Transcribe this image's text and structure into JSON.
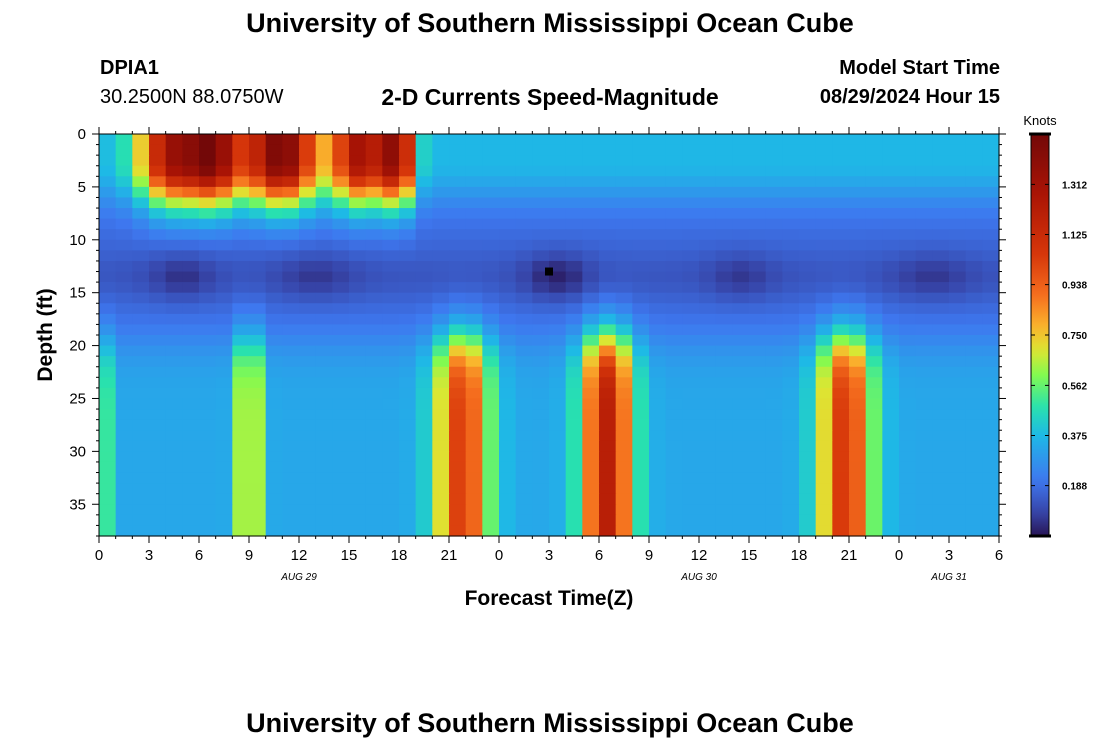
{
  "header": {
    "title": "University of Southern Mississippi Ocean Cube",
    "station": "DPIA1",
    "coordinates": "30.2500N  88.0750W",
    "subtitle": "2-D Currents Speed-Magnitude",
    "model_start_label": "Model Start Time",
    "model_start_value": "08/29/2024 Hour 15"
  },
  "footer": {
    "title": "University of Southern Mississippi Ocean Cube"
  },
  "chart_data": {
    "type": "heatmap",
    "xlabel": "Forecast Time(Z)",
    "ylabel": "Depth (ft)",
    "x_tick_labels": [
      "0",
      "3",
      "6",
      "9",
      "12",
      "15",
      "18",
      "21",
      "0",
      "3",
      "6",
      "9",
      "12",
      "15",
      "18",
      "21",
      "0",
      "3",
      "6"
    ],
    "x_date_labels": [
      {
        "label": "AUG 29",
        "at_tick": 4
      },
      {
        "label": "AUG 30",
        "at_tick": 12
      },
      {
        "label": "AUG 31",
        "at_tick": 17
      }
    ],
    "y_ticks": [
      0,
      5,
      10,
      15,
      20,
      25,
      30,
      35
    ],
    "ylim": [
      38,
      0
    ],
    "colorbar": {
      "label": "Knots",
      "ticks": [
        "0.188",
        "0.375",
        "0.562",
        "0.750",
        "0.938",
        "1.125",
        "1.312"
      ],
      "range": [
        0,
        1.5
      ]
    },
    "min_marker": {
      "tick_index": 9,
      "depth": 13
    }
  }
}
